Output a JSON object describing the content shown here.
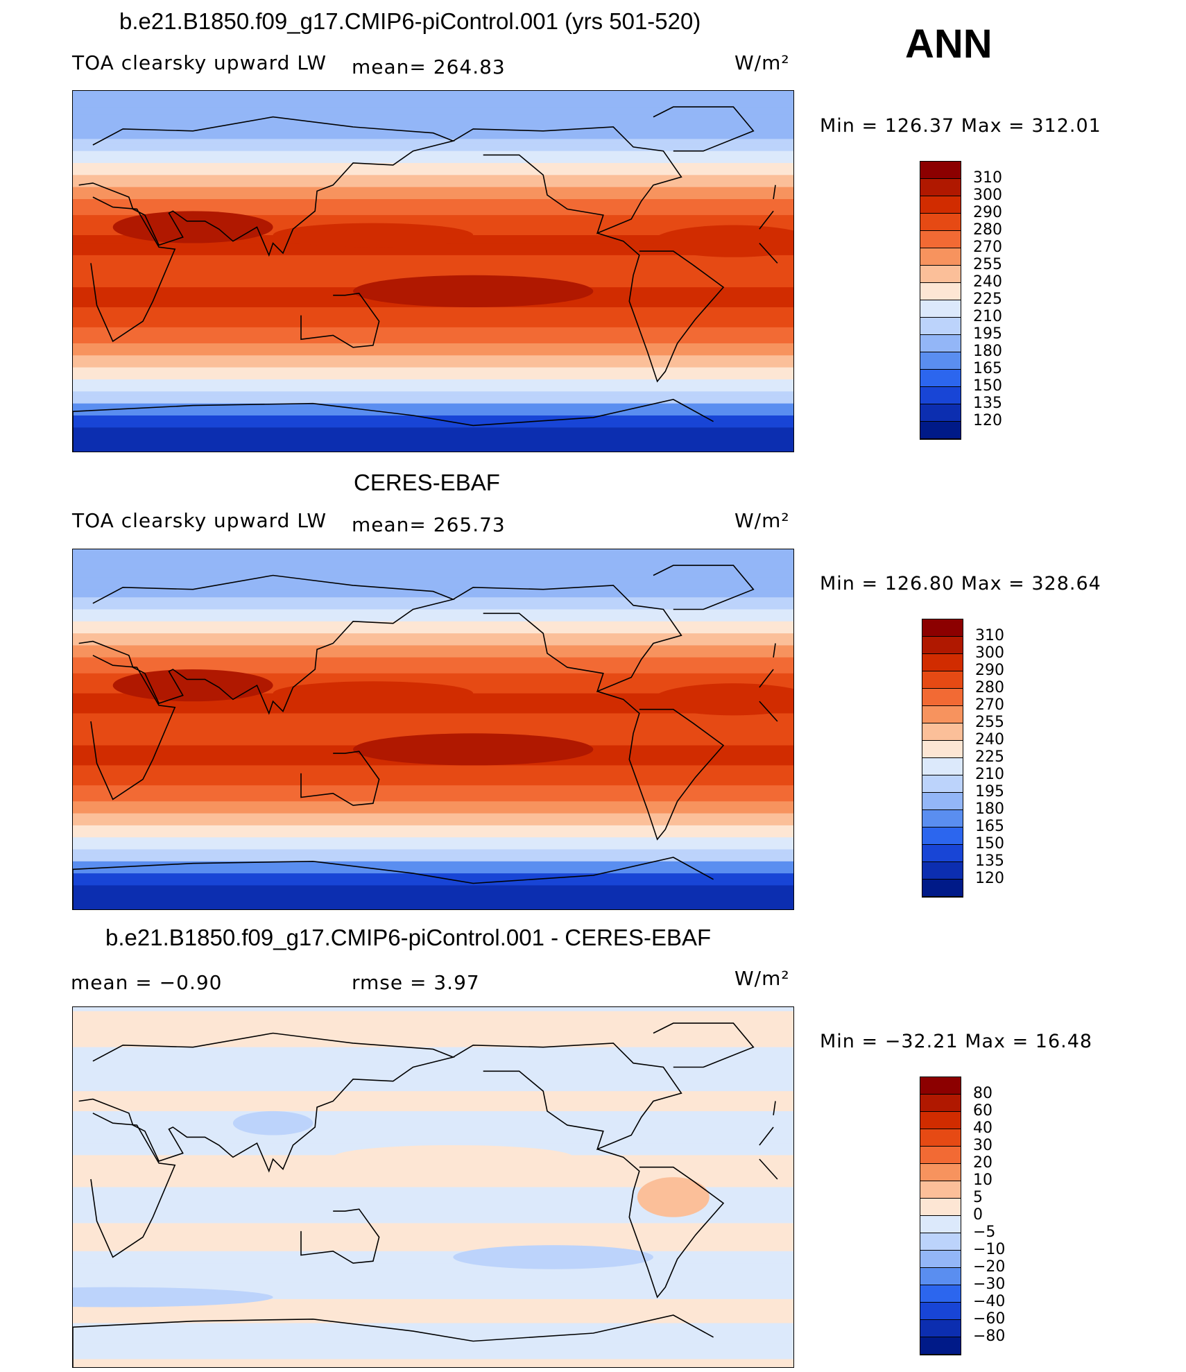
{
  "header": {
    "season": "ANN"
  },
  "panels": [
    {
      "title": "b.e21.B1850.f09_g17.CMIP6-piControl.001 (yrs 501-520)",
      "left_label": "TOA clearsky upward LW",
      "mid_label": "mean= 264.83",
      "units": "W/m²",
      "minmax": "Min = 126.37 Max = 312.01",
      "colorbar": {
        "ticks": [
          "310",
          "300",
          "290",
          "280",
          "270",
          "255",
          "240",
          "225",
          "210",
          "195",
          "180",
          "165",
          "150",
          "135",
          "120"
        ],
        "colors": [
          "#8c0000",
          "#b01800",
          "#d12c00",
          "#e64a14",
          "#f26a34",
          "#f7935e",
          "#fbbf99",
          "#fde6d4",
          "#dce9fb",
          "#bcd3fb",
          "#93b6f7",
          "#5a8ef0",
          "#2c66ee",
          "#1845d6",
          "#0c2eb0",
          "#001a88"
        ]
      },
      "map_type": "abs"
    },
    {
      "title": "CERES-EBAF",
      "left_label": "TOA clearsky upward LW",
      "mid_label": "mean= 265.73",
      "units": "W/m²",
      "minmax": "Min = 126.80 Max = 328.64",
      "colorbar": {
        "ticks": [
          "310",
          "300",
          "290",
          "280",
          "270",
          "255",
          "240",
          "225",
          "210",
          "195",
          "180",
          "165",
          "150",
          "135",
          "120"
        ],
        "colors": [
          "#8c0000",
          "#b01800",
          "#d12c00",
          "#e64a14",
          "#f26a34",
          "#f7935e",
          "#fbbf99",
          "#fde6d4",
          "#dce9fb",
          "#bcd3fb",
          "#93b6f7",
          "#5a8ef0",
          "#2c66ee",
          "#1845d6",
          "#0c2eb0",
          "#001a88"
        ]
      },
      "map_type": "abs"
    },
    {
      "title": "b.e21.B1850.f09_g17.CMIP6-piControl.001 - CERES-EBAF",
      "left_label": "mean =   −0.90",
      "mid_label": "rmse =    3.97",
      "units": "W/m²",
      "minmax": "Min = −32.21 Max =  16.48",
      "colorbar": {
        "ticks": [
          "80",
          "60",
          "40",
          "30",
          "20",
          "10",
          "5",
          "0",
          "−5",
          "−10",
          "−20",
          "−30",
          "−40",
          "−60",
          "−80"
        ],
        "colors": [
          "#8c0000",
          "#b01800",
          "#d12c00",
          "#e64a14",
          "#f26a34",
          "#f7935e",
          "#fbbf99",
          "#fde6d4",
          "#dce9fb",
          "#bcd3fb",
          "#93b6f7",
          "#5a8ef0",
          "#2c66ee",
          "#1845d6",
          "#0c2eb0",
          "#001a88"
        ]
      },
      "map_type": "diff"
    }
  ]
}
